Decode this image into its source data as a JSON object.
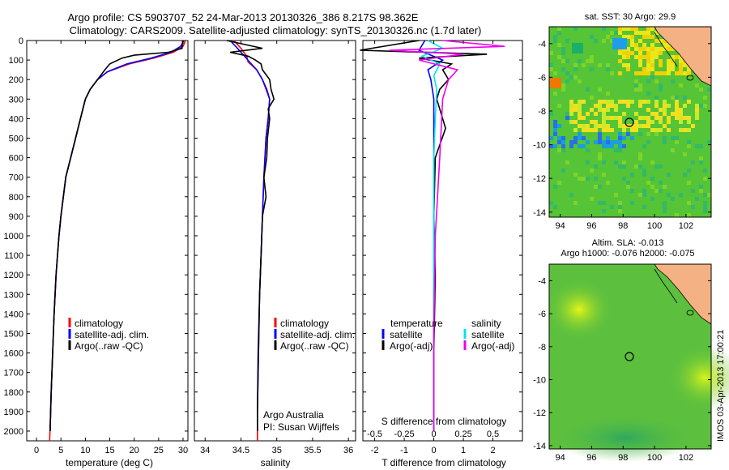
{
  "header": {
    "line1": "Argo profile: CS 5903707_52 24-Mar-2013 20130326_386 8.217S 98.362E",
    "line2": "Climatology: CARS2009. Satellite-adjusted climatology: synTS_20130326.nc (1.7d later)"
  },
  "depth_ticks": [
    0,
    100,
    200,
    300,
    400,
    500,
    600,
    700,
    800,
    900,
    1000,
    1100,
    1200,
    1300,
    1400,
    1500,
    1600,
    1700,
    1800,
    1900,
    2000
  ],
  "credit": "IMOS 03-Apr-2013 17:00:21",
  "colors": {
    "red": "#ff0000",
    "blue": "#0000ff",
    "black": "#000000",
    "cyan": "#00e5ee",
    "magenta": "#ee00ee",
    "land": "#f4b183"
  },
  "panels": {
    "temperature": {
      "xlabel": "temperature (deg C)",
      "xticks": [
        "0",
        "5",
        "10",
        "15",
        "20",
        "25",
        "30"
      ],
      "legend": [
        "climatology",
        "satellite-adj. clim.",
        "Argo(..raw -QC)"
      ]
    },
    "salinity": {
      "xlabel": "salinity",
      "xticks": [
        "34",
        "34.5",
        "35",
        "35.5",
        "36"
      ],
      "legend": [
        "climatology",
        "satellite-adj. clim.",
        "Argo(..raw -QC)"
      ],
      "note1": "Argo Australia",
      "note2": "PI: Susan Wijffels"
    },
    "difference": {
      "xlabel": "T difference from climatology",
      "top_label": "S difference from climatology",
      "top_ticks": [
        "-0.5",
        "-0.25",
        "0",
        "0.25",
        "0.5"
      ],
      "xticks": [
        "-2",
        "-1",
        "0",
        "1",
        "2"
      ],
      "legend_t_head": "temperature",
      "legend_s_head": "salinity",
      "legend_t": [
        "satellite",
        "Argo(-adj)"
      ],
      "legend_s": [
        "satellite",
        "Argo(-adj)"
      ]
    },
    "sst_map": {
      "title": "sat. SST: 30 Argo: 29.9",
      "lat_ticks": [
        "-4",
        "-6",
        "-8",
        "-10",
        "-12",
        "-14"
      ],
      "lon_ticks": [
        "94",
        "96",
        "98",
        "100",
        "102"
      ]
    },
    "sla_map": {
      "title1": "Altim. SLA: -0.013",
      "title2": "Argo h1000: -0.076 h2000: -0.075",
      "lat_ticks": [
        "-4",
        "-6",
        "-8",
        "-10",
        "-12",
        "-14"
      ],
      "lon_ticks": [
        "94",
        "96",
        "98",
        "100",
        "102"
      ]
    }
  },
  "chart_data": [
    {
      "type": "line",
      "title": "",
      "xlabel": "temperature (deg C)",
      "ylabel": "",
      "xlim": [
        -2,
        31
      ],
      "ylim": [
        2050,
        0
      ],
      "y_reversed": true,
      "series": [
        {
          "name": "climatology",
          "color": "#ff0000",
          "x": [
            30.5,
            30.0,
            28.0,
            24.0,
            19.0,
            14.5,
            12.5,
            11.0,
            10.0,
            9.0,
            8.0,
            7.0,
            6.0,
            5.5,
            5.0,
            4.6,
            4.3,
            4.0,
            3.6,
            3.3,
            3.0,
            2.9,
            2.7
          ],
          "y": [
            0,
            30,
            60,
            90,
            120,
            160,
            200,
            250,
            300,
            400,
            500,
            600,
            700,
            800,
            900,
            1000,
            1100,
            1200,
            1400,
            1600,
            1800,
            1900,
            2050
          ]
        },
        {
          "name": "satellite-adj. clim.",
          "color": "#0000ff",
          "x": [
            30.2,
            29.5,
            27.5,
            23.5,
            18.5,
            14.5,
            12.5,
            11.0,
            10.0,
            9.0,
            8.0,
            7.0,
            6.0,
            5.5,
            5.0,
            4.6,
            4.3,
            4.0,
            3.6,
            3.3,
            3.0,
            2.9,
            2.8
          ],
          "y": [
            0,
            30,
            60,
            90,
            120,
            160,
            200,
            250,
            300,
            400,
            500,
            600,
            700,
            800,
            900,
            1000,
            1100,
            1200,
            1400,
            1600,
            1800,
            1900,
            2000
          ]
        },
        {
          "name": "Argo(..raw -QC)",
          "color": "#000000",
          "x": [
            29.9,
            29.8,
            27.0,
            20.0,
            17.5,
            15.0,
            14.0,
            12.5,
            11.0,
            10.0,
            9.0,
            8.0,
            7.0,
            6.0,
            5.5,
            5.0,
            4.6,
            4.3,
            4.0,
            3.6,
            3.3,
            3.0,
            2.9,
            2.8
          ],
          "y": [
            0,
            40,
            60,
            75,
            90,
            120,
            150,
            200,
            250,
            300,
            400,
            500,
            600,
            700,
            800,
            900,
            1000,
            1100,
            1200,
            1400,
            1600,
            1800,
            1900,
            2000
          ]
        }
      ]
    },
    {
      "type": "line",
      "title": "",
      "xlabel": "salinity",
      "ylabel": "",
      "xlim": [
        33.85,
        36.1
      ],
      "ylim": [
        2050,
        0
      ],
      "y_reversed": true,
      "series": [
        {
          "name": "climatology",
          "color": "#ff0000",
          "x": [
            34.4,
            34.5,
            34.58,
            34.6,
            34.72,
            34.8,
            34.85,
            34.9,
            34.88,
            34.85,
            34.82,
            34.8,
            34.78,
            34.76,
            34.75,
            34.74,
            34.73,
            34.73,
            34.73
          ],
          "y": [
            0,
            40,
            80,
            110,
            150,
            200,
            250,
            300,
            400,
            500,
            700,
            900,
            1100,
            1300,
            1500,
            1700,
            1900,
            2000,
            2050
          ]
        },
        {
          "name": "satellite-adj. clim.",
          "color": "#0000ff",
          "x": [
            34.35,
            34.45,
            34.55,
            34.62,
            34.72,
            34.8,
            34.86,
            34.9,
            34.88,
            34.85,
            34.82,
            34.8,
            34.78,
            34.76,
            34.75,
            34.74,
            34.73,
            34.73
          ],
          "y": [
            0,
            40,
            80,
            110,
            150,
            200,
            250,
            300,
            400,
            500,
            700,
            900,
            1100,
            1300,
            1500,
            1700,
            1900,
            2000
          ]
        },
        {
          "name": "Argo(..raw -QC)",
          "color": "#000000",
          "x": [
            34.3,
            34.8,
            34.35,
            34.6,
            34.7,
            34.78,
            34.8,
            34.9,
            34.92,
            34.96,
            34.88,
            34.9,
            34.87,
            34.86,
            34.82,
            34.85,
            34.8,
            34.78,
            34.76,
            34.74,
            34.73,
            34.73
          ],
          "y": [
            0,
            40,
            60,
            80,
            100,
            120,
            150,
            200,
            250,
            300,
            350,
            400,
            500,
            600,
            700,
            800,
            900,
            1100,
            1300,
            1600,
            1900,
            2000
          ]
        }
      ]
    },
    {
      "type": "line",
      "title": "",
      "xlabel": "T difference from climatology",
      "ylabel": "",
      "xlim": [
        -2.4,
        3.0
      ],
      "ylim": [
        2050,
        0
      ],
      "y_reversed": true,
      "series": [
        {
          "name": "temperature satellite",
          "color": "#0000ff",
          "x": [
            -0.3,
            -0.5,
            0.3,
            -0.2,
            -0.1,
            0,
            0,
            0,
            0,
            0,
            0,
            0,
            0
          ],
          "y": [
            0,
            50,
            100,
            150,
            200,
            300,
            500,
            800,
            1100,
            1400,
            1700,
            1900,
            2000
          ]
        },
        {
          "name": "temperature Argo(-adj)",
          "color": "#000000",
          "x": [
            -0.5,
            -2.5,
            1.8,
            -0.5,
            0.6,
            0.3,
            0.5,
            0.2,
            0.1,
            0.4,
            0.05,
            0.0,
            0.05,
            0.0,
            0.0
          ],
          "y": [
            0,
            50,
            70,
            90,
            120,
            150,
            200,
            250,
            300,
            450,
            600,
            900,
            1200,
            1600,
            2000
          ]
        },
        {
          "name": "salinity satellite",
          "color": "#00e5ee",
          "x": [
            -0.2,
            0.3,
            -0.4,
            0.2,
            0.0,
            0.1,
            0.05,
            0.0,
            0.0,
            0.0,
            0.0,
            0.0
          ],
          "y": [
            0,
            40,
            80,
            120,
            180,
            250,
            400,
            600,
            900,
            1300,
            1700,
            2000
          ]
        },
        {
          "name": "salinity Argo(-adj)",
          "color": "#ee00ee",
          "x": [
            0.3,
            2.4,
            -1.5,
            1.0,
            -0.5,
            0.8,
            0.5,
            0.4,
            0.3,
            0.2,
            0.05,
            0.0,
            0.0
          ],
          "y": [
            0,
            30,
            50,
            70,
            100,
            150,
            200,
            250,
            300,
            600,
            1000,
            1500,
            2000
          ]
        }
      ]
    }
  ]
}
